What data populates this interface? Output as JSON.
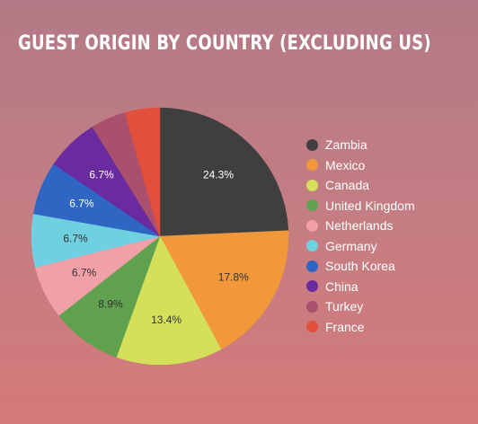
{
  "chart_data": {
    "type": "pie",
    "title": "GUEST ORIGIN BY COUNTRY (EXCLUDING US)",
    "legend_position": "right",
    "slices": [
      {
        "label": "Zambia",
        "value": 24.3,
        "value_label": "24.3%",
        "color": "#3f3f3f",
        "label_color": "#ffffff"
      },
      {
        "label": "Mexico",
        "value": 17.8,
        "value_label": "17.8%",
        "color": "#f0983a",
        "label_color": "#333333"
      },
      {
        "label": "Canada",
        "value": 13.4,
        "value_label": "13.4%",
        "color": "#d4df5a",
        "label_color": "#333333"
      },
      {
        "label": "United Kingdom",
        "value": 8.9,
        "value_label": "8.9%",
        "color": "#5fa14f",
        "label_color": "#333333"
      },
      {
        "label": "Netherlands",
        "value": 6.7,
        "value_label": "6.7%",
        "color": "#f0a0a6",
        "label_color": "#333333"
      },
      {
        "label": "Germany",
        "value": 6.7,
        "value_label": "6.7%",
        "color": "#6fd0e0",
        "label_color": "#333333"
      },
      {
        "label": "South Korea",
        "value": 6.7,
        "value_label": "6.7%",
        "color": "#2f66c4",
        "label_color": "#ffffff"
      },
      {
        "label": "China",
        "value": 6.7,
        "value_label": "6.7%",
        "color": "#6a2aa0",
        "label_color": "#ffffff"
      },
      {
        "label": "Turkey",
        "value": 4.4,
        "value_label": "",
        "color": "#a9506f",
        "label_color": "#ffffff"
      },
      {
        "label": "France",
        "value": 4.4,
        "value_label": "",
        "color": "#e24f3c",
        "label_color": "#ffffff"
      }
    ]
  }
}
